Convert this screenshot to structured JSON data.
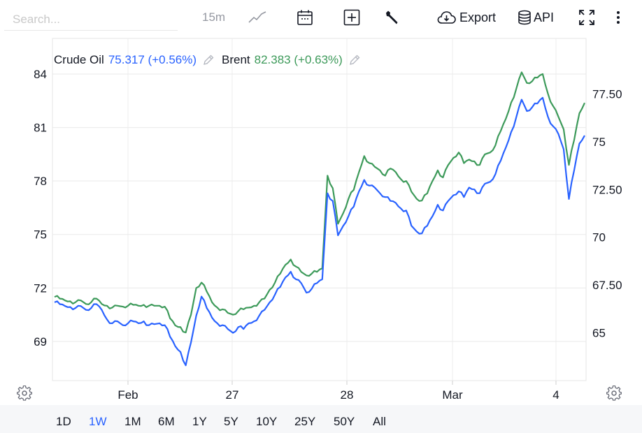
{
  "toolbar": {
    "search_placeholder": "Search...",
    "interval": "15m",
    "export_label": "Export",
    "api_label": "API",
    "icons": [
      "line-chart-icon",
      "calendar-icon",
      "add-indicator-icon",
      "wrench-icon",
      "cloud-download-icon",
      "database-icon",
      "fullscreen-icon",
      "more-vertical-icon"
    ]
  },
  "legend": [
    {
      "name": "Crude Oil",
      "value": "75.317",
      "change": "(+0.56%)",
      "color": "#2962ff"
    },
    {
      "name": "Brent",
      "value": "82.383",
      "change": "(+0.63%)",
      "color": "#3d9a5a"
    }
  ],
  "ranges": {
    "items": [
      "1D",
      "1W",
      "1M",
      "6M",
      "1Y",
      "5Y",
      "10Y",
      "25Y",
      "50Y",
      "All"
    ],
    "active": "1W"
  },
  "chart_data": {
    "type": "line",
    "title": "",
    "grid": true,
    "x_ticks": [
      "Feb",
      "27",
      "28",
      "Mar",
      "4"
    ],
    "left_axis": {
      "ticks": [
        69,
        72,
        75,
        78,
        81,
        84
      ],
      "range": [
        66.8,
        86.0
      ]
    },
    "right_axis": {
      "ticks": [
        "65",
        "67.50",
        "70",
        "72.50",
        "75",
        "77.50"
      ],
      "range": [
        62.5,
        80.4
      ]
    },
    "series": [
      {
        "name": "Crude Oil",
        "color": "#2962ff",
        "axis": "right",
        "x": [
          0,
          1,
          2,
          3,
          4,
          5,
          6,
          7,
          8,
          9,
          10,
          11,
          12,
          13,
          14,
          15,
          16,
          17,
          18,
          19,
          20,
          21,
          22,
          23,
          24,
          25,
          26,
          27,
          28,
          29,
          30,
          31,
          32,
          33,
          34,
          35,
          36,
          37,
          38,
          39,
          40,
          41,
          42,
          43,
          44,
          45,
          46,
          47,
          48,
          49,
          50,
          51,
          52,
          53,
          54,
          55,
          56,
          57,
          58,
          59,
          60,
          61,
          62,
          63,
          64,
          65,
          66,
          67,
          68,
          69,
          70,
          71,
          72,
          73,
          74,
          75,
          76,
          77,
          78,
          79,
          80,
          81,
          82,
          83,
          84,
          85,
          86,
          87,
          88,
          89,
          90,
          91,
          92,
          93,
          94,
          95,
          96,
          97,
          98,
          99,
          100,
          101
        ],
        "values": [
          66.6,
          66.5,
          66.4,
          66.35,
          66.3,
          66.4,
          66.2,
          66.3,
          66.5,
          66.2,
          65.7,
          65.5,
          65.6,
          65.4,
          65.5,
          65.6,
          65.5,
          65.6,
          65.4,
          65.45,
          65.5,
          65.4,
          64.8,
          64.3,
          64.0,
          63.3,
          64.5,
          65.9,
          66.9,
          66.3,
          65.8,
          65.5,
          65.4,
          65.2,
          65.0,
          65.3,
          65.2,
          65.5,
          65.6,
          65.9,
          66.2,
          66.6,
          67.0,
          67.4,
          67.9,
          68.2,
          67.8,
          67.6,
          67.1,
          67.3,
          67.6,
          67.8,
          72.3,
          71.9,
          70.1,
          70.6,
          71.1,
          71.6,
          72.4,
          73.0,
          72.7,
          72.6,
          72.3,
          72.1,
          71.9,
          71.8,
          71.5,
          71.4,
          70.6,
          70.3,
          70.2,
          70.6,
          71.1,
          71.7,
          71.4,
          71.9,
          72.2,
          72.4,
          72.1,
          72.6,
          72.5,
          72.3,
          72.8,
          72.9,
          73.3,
          74.0,
          74.7,
          75.5,
          76.3,
          77.2,
          76.6,
          76.8,
          77.0,
          77.3,
          76.3,
          75.8,
          75.4,
          74.6,
          72.0,
          73.5,
          74.9,
          75.317
        ]
      },
      {
        "name": "Brent",
        "color": "#3d9a5a",
        "axis": "left",
        "x": [
          0,
          1,
          2,
          3,
          4,
          5,
          6,
          7,
          8,
          9,
          10,
          11,
          12,
          13,
          14,
          15,
          16,
          17,
          18,
          19,
          20,
          21,
          22,
          23,
          24,
          25,
          26,
          27,
          28,
          29,
          30,
          31,
          32,
          33,
          34,
          35,
          36,
          37,
          38,
          39,
          40,
          41,
          42,
          43,
          44,
          45,
          46,
          47,
          48,
          49,
          50,
          51,
          52,
          53,
          54,
          55,
          56,
          57,
          58,
          59,
          60,
          61,
          62,
          63,
          64,
          65,
          66,
          67,
          68,
          69,
          70,
          71,
          72,
          73,
          74,
          75,
          76,
          77,
          78,
          79,
          80,
          81,
          82,
          83,
          84,
          85,
          86,
          87,
          88,
          89,
          90,
          91,
          92,
          93,
          94,
          95,
          96,
          97,
          98,
          99,
          100,
          101
        ],
        "values": [
          71.5,
          71.4,
          71.3,
          71.25,
          71.2,
          71.3,
          71.1,
          71.2,
          71.4,
          71.1,
          71.0,
          70.9,
          71.0,
          70.95,
          71.0,
          71.05,
          71.0,
          71.05,
          71.0,
          71.0,
          71.0,
          70.95,
          70.3,
          69.9,
          69.8,
          69.5,
          70.5,
          72.0,
          72.3,
          71.8,
          71.2,
          70.9,
          70.8,
          70.6,
          70.5,
          70.7,
          70.8,
          70.9,
          71.0,
          71.2,
          71.4,
          71.9,
          72.3,
          72.8,
          73.3,
          73.6,
          73.2,
          72.9,
          72.7,
          72.8,
          72.9,
          73.1,
          78.3,
          77.6,
          75.6,
          76.2,
          77.0,
          77.5,
          78.5,
          79.4,
          79.0,
          78.8,
          78.6,
          78.3,
          78.7,
          78.5,
          78.1,
          78.0,
          77.4,
          77.0,
          76.9,
          77.3,
          78.0,
          78.6,
          78.2,
          78.9,
          79.3,
          79.6,
          79.0,
          79.2,
          79.1,
          78.9,
          79.5,
          79.6,
          80.0,
          80.8,
          81.5,
          82.4,
          83.2,
          84.1,
          83.5,
          83.6,
          83.8,
          84.0,
          82.9,
          82.2,
          81.6,
          80.9,
          78.9,
          80.3,
          81.8,
          82.383
        ]
      }
    ]
  }
}
